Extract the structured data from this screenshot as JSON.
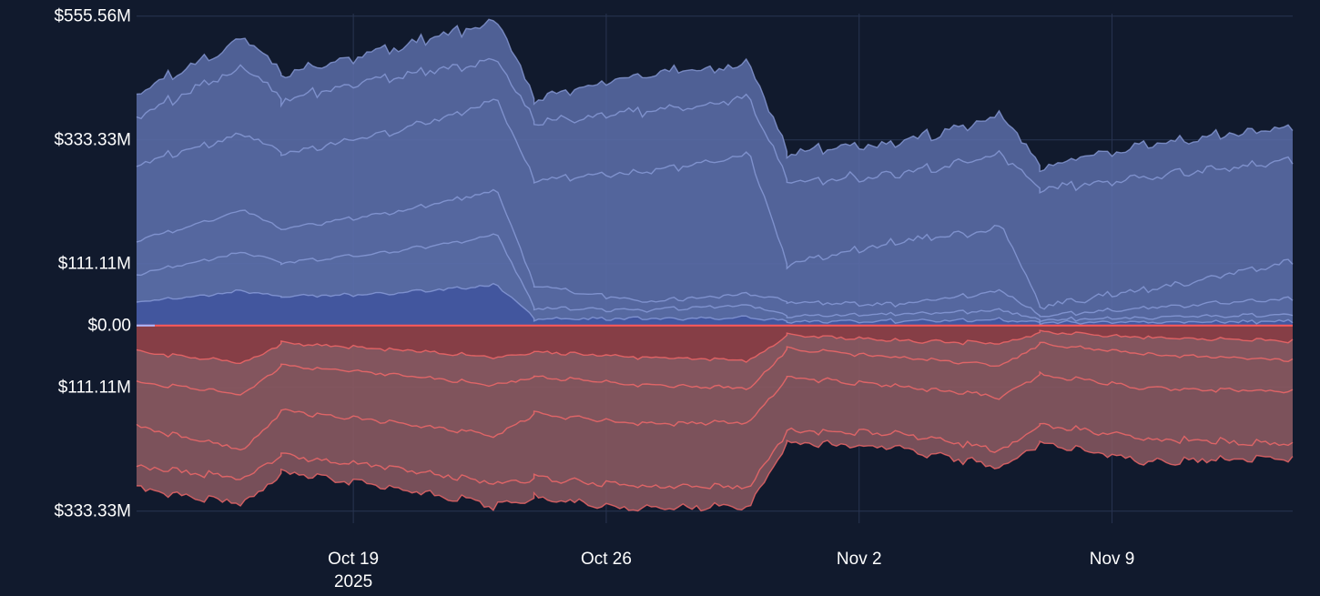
{
  "colors": {
    "background": "#111a2d",
    "grid": "#283451",
    "text": "#ffffff",
    "positive_fill": "#5a6da8",
    "positive_line": "#8ea0de",
    "positive_core": "#1d3399",
    "negative_fill": "#8a5962",
    "negative_line": "#ff6b6b",
    "negative_core": "#8b1c22",
    "zero_line": "#ff5a5a"
  },
  "chart_data": {
    "type": "area",
    "title": "",
    "xlabel": "",
    "ylabel": "",
    "x_start": "2025-10-13",
    "x_end": "2025-11-14",
    "xlim": [
      "2025-10-13",
      "2025-11-14"
    ],
    "ylim": [
      -355,
      560
    ],
    "x_ticks": [
      {
        "date": "2025-10-19",
        "label": "Oct 19",
        "sublabel": "2025"
      },
      {
        "date": "2025-10-26",
        "label": "Oct 26",
        "sublabel": ""
      },
      {
        "date": "2025-11-02",
        "label": "Nov 2",
        "sublabel": ""
      },
      {
        "date": "2025-11-09",
        "label": "Nov 9",
        "sublabel": ""
      }
    ],
    "y_ticks": [
      {
        "value": 555.56,
        "label": "$555.56M"
      },
      {
        "value": 333.33,
        "label": "$333.33M"
      },
      {
        "value": 111.11,
        "label": "$111.11M"
      },
      {
        "value": 0,
        "label": "$0.00"
      },
      {
        "value": -111.11,
        "label": "$111.11M"
      },
      {
        "value": -333.33,
        "label": "$333.33M"
      }
    ],
    "grid": true,
    "legend": "none",
    "resets": [
      "2025-10-17",
      "2025-10-24",
      "2025-10-31",
      "2025-11-07"
    ],
    "positive_series": [
      {
        "opacity": 0.1,
        "points": [
          [
            "2025-10-13",
            410
          ],
          [
            "2025-10-16",
            510
          ],
          [
            "2025-10-17",
            445
          ],
          [
            "2025-10-20",
            490
          ],
          [
            "2025-10-23",
            540
          ],
          [
            "2025-10-24",
            400
          ],
          [
            "2025-10-27",
            445
          ],
          [
            "2025-10-30",
            460
          ],
          [
            "2025-10-31",
            305
          ],
          [
            "2025-11-03",
            320
          ],
          [
            "2025-11-06",
            370
          ],
          [
            "2025-11-07",
            280
          ],
          [
            "2025-11-10",
            320
          ],
          [
            "2025-11-14",
            350
          ]
        ]
      },
      {
        "opacity": 0.1,
        "points": [
          [
            "2025-10-13",
            370
          ],
          [
            "2025-10-16",
            460
          ],
          [
            "2025-10-17",
            400
          ],
          [
            "2025-10-20",
            440
          ],
          [
            "2025-10-23",
            470
          ],
          [
            "2025-10-24",
            360
          ],
          [
            "2025-10-27",
            380
          ],
          [
            "2025-10-30",
            400
          ],
          [
            "2025-10-31",
            255
          ],
          [
            "2025-11-03",
            265
          ],
          [
            "2025-11-06",
            300
          ],
          [
            "2025-11-07",
            240
          ],
          [
            "2025-11-10",
            260
          ],
          [
            "2025-11-14",
            290
          ]
        ]
      },
      {
        "opacity": 0.12,
        "points": [
          [
            "2025-10-13",
            285
          ],
          [
            "2025-10-16",
            340
          ],
          [
            "2025-10-17",
            305
          ],
          [
            "2025-10-20",
            340
          ],
          [
            "2025-10-23",
            400
          ],
          [
            "2025-10-24",
            255
          ],
          [
            "2025-10-27",
            270
          ],
          [
            "2025-10-30",
            300
          ],
          [
            "2025-10-31",
            105
          ],
          [
            "2025-11-03",
            145
          ],
          [
            "2025-11-06",
            170
          ],
          [
            "2025-11-07",
            30
          ],
          [
            "2025-11-10",
            60
          ],
          [
            "2025-11-14",
            110
          ]
        ]
      },
      {
        "opacity": 0.14,
        "points": [
          [
            "2025-10-13",
            150
          ],
          [
            "2025-10-16",
            205
          ],
          [
            "2025-10-17",
            170
          ],
          [
            "2025-10-20",
            200
          ],
          [
            "2025-10-23",
            240
          ],
          [
            "2025-10-24",
            70
          ],
          [
            "2025-10-27",
            40
          ],
          [
            "2025-10-30",
            55
          ],
          [
            "2025-10-31",
            40
          ],
          [
            "2025-11-03",
            35
          ],
          [
            "2025-11-06",
            60
          ],
          [
            "2025-11-07",
            15
          ],
          [
            "2025-11-10",
            30
          ],
          [
            "2025-11-14",
            45
          ]
        ]
      },
      {
        "opacity": 0.16,
        "points": [
          [
            "2025-10-13",
            90
          ],
          [
            "2025-10-16",
            130
          ],
          [
            "2025-10-17",
            110
          ],
          [
            "2025-10-20",
            130
          ],
          [
            "2025-10-23",
            160
          ],
          [
            "2025-10-24",
            30
          ],
          [
            "2025-10-27",
            25
          ],
          [
            "2025-10-30",
            35
          ],
          [
            "2025-10-31",
            15
          ],
          [
            "2025-11-03",
            18
          ],
          [
            "2025-11-06",
            25
          ],
          [
            "2025-11-07",
            8
          ],
          [
            "2025-11-10",
            12
          ],
          [
            "2025-11-14",
            18
          ]
        ]
      },
      {
        "opacity": 0.2,
        "points": [
          [
            "2025-10-13",
            40
          ],
          [
            "2025-10-16",
            60
          ],
          [
            "2025-10-17",
            50
          ],
          [
            "2025-10-20",
            55
          ],
          [
            "2025-10-23",
            70
          ],
          [
            "2025-10-24",
            10
          ],
          [
            "2025-10-27",
            10
          ],
          [
            "2025-10-30",
            12
          ],
          [
            "2025-10-31",
            5
          ],
          [
            "2025-11-03",
            6
          ],
          [
            "2025-11-06",
            8
          ],
          [
            "2025-11-07",
            3
          ],
          [
            "2025-11-10",
            4
          ],
          [
            "2025-11-14",
            5
          ]
        ]
      }
    ],
    "negative_series": [
      {
        "opacity": 0.12,
        "points": [
          [
            "2025-10-13",
            -290
          ],
          [
            "2025-10-16",
            -315
          ],
          [
            "2025-10-17",
            -260
          ],
          [
            "2025-10-20",
            -285
          ],
          [
            "2025-10-23",
            -320
          ],
          [
            "2025-10-24",
            -305
          ],
          [
            "2025-10-27",
            -325
          ],
          [
            "2025-10-30",
            -320
          ],
          [
            "2025-10-31",
            -205
          ],
          [
            "2025-11-03",
            -215
          ],
          [
            "2025-11-06",
            -250
          ],
          [
            "2025-11-07",
            -205
          ],
          [
            "2025-11-10",
            -240
          ],
          [
            "2025-11-14",
            -235
          ]
        ]
      },
      {
        "opacity": 0.14,
        "points": [
          [
            "2025-10-13",
            -250
          ],
          [
            "2025-10-16",
            -270
          ],
          [
            "2025-10-17",
            -230
          ],
          [
            "2025-10-20",
            -250
          ],
          [
            "2025-10-23",
            -280
          ],
          [
            "2025-10-24",
            -270
          ],
          [
            "2025-10-27",
            -285
          ],
          [
            "2025-10-30",
            -285
          ],
          [
            "2025-10-31",
            -185
          ],
          [
            "2025-11-03",
            -190
          ],
          [
            "2025-11-06",
            -220
          ],
          [
            "2025-11-07",
            -175
          ],
          [
            "2025-11-10",
            -200
          ],
          [
            "2025-11-14",
            -210
          ]
        ]
      },
      {
        "opacity": 0.16,
        "points": [
          [
            "2025-10-13",
            -180
          ],
          [
            "2025-10-16",
            -220
          ],
          [
            "2025-10-17",
            -150
          ],
          [
            "2025-10-20",
            -170
          ],
          [
            "2025-10-23",
            -195
          ],
          [
            "2025-10-24",
            -155
          ],
          [
            "2025-10-27",
            -175
          ],
          [
            "2025-10-30",
            -170
          ],
          [
            "2025-10-31",
            -90
          ],
          [
            "2025-11-03",
            -105
          ],
          [
            "2025-11-06",
            -125
          ],
          [
            "2025-11-07",
            -85
          ],
          [
            "2025-11-10",
            -110
          ],
          [
            "2025-11-14",
            -115
          ]
        ]
      },
      {
        "opacity": 0.2,
        "points": [
          [
            "2025-10-13",
            -100
          ],
          [
            "2025-10-16",
            -120
          ],
          [
            "2025-10-17",
            -70
          ],
          [
            "2025-10-20",
            -85
          ],
          [
            "2025-10-23",
            -105
          ],
          [
            "2025-10-24",
            -90
          ],
          [
            "2025-10-27",
            -105
          ],
          [
            "2025-10-30",
            -110
          ],
          [
            "2025-10-31",
            -40
          ],
          [
            "2025-11-03",
            -55
          ],
          [
            "2025-11-06",
            -70
          ],
          [
            "2025-11-07",
            -30
          ],
          [
            "2025-11-10",
            -50
          ],
          [
            "2025-11-14",
            -60
          ]
        ]
      },
      {
        "opacity": 0.25,
        "points": [
          [
            "2025-10-13",
            -45
          ],
          [
            "2025-10-16",
            -65
          ],
          [
            "2025-10-17",
            -30
          ],
          [
            "2025-10-20",
            -40
          ],
          [
            "2025-10-23",
            -55
          ],
          [
            "2025-10-24",
            -45
          ],
          [
            "2025-10-27",
            -55
          ],
          [
            "2025-10-30",
            -60
          ],
          [
            "2025-10-31",
            -15
          ],
          [
            "2025-11-03",
            -25
          ],
          [
            "2025-11-06",
            -30
          ],
          [
            "2025-11-07",
            -10
          ],
          [
            "2025-11-10",
            -20
          ],
          [
            "2025-11-14",
            -25
          ]
        ]
      }
    ]
  }
}
